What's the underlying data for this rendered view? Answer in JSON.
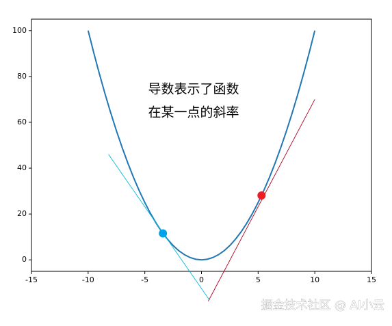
{
  "chart_data": {
    "type": "line",
    "xlim": [
      -15,
      15
    ],
    "ylim": [
      -5,
      105
    ],
    "xticks": [
      -15,
      -10,
      -5,
      0,
      5,
      10,
      15
    ],
    "yticks": [
      0,
      20,
      40,
      60,
      80,
      100
    ],
    "series": [
      {
        "color": "#1f77b4",
        "x": [
          -10,
          -9.5,
          -9,
          -8.5,
          -8,
          -7.5,
          -7,
          -6.5,
          -6,
          -5.5,
          -5,
          -4.5,
          -4,
          -3.5,
          -3,
          -2.5,
          -2,
          -1.5,
          -1,
          -0.5,
          0,
          0.5,
          1,
          1.5,
          2,
          2.5,
          3,
          3.5,
          4,
          4.5,
          5,
          5.5,
          6,
          6.5,
          7,
          7.5,
          8,
          8.5,
          9,
          9.5,
          10
        ],
        "values": [
          100,
          90.25,
          81,
          72.25,
          64,
          56.25,
          49,
          42.25,
          36,
          30.25,
          25,
          20.25,
          16,
          12.25,
          9,
          6.25,
          4,
          2.25,
          1,
          0.25,
          0,
          0.25,
          1,
          2.25,
          4,
          6.25,
          9,
          12.25,
          16,
          20.25,
          25,
          30.25,
          36,
          42.25,
          49,
          56.25,
          64,
          72.25,
          81,
          90.25,
          100
        ]
      },
      {
        "color": "#00bcd8",
        "x": [
          -8.2,
          0.7
        ],
        "values": [
          46,
          -17.5
        ]
      },
      {
        "color": "#b00020",
        "x": [
          0.6,
          10
        ],
        "values": [
          -18,
          70
        ]
      },
      {
        "color": "#00a2e8",
        "marker": true,
        "x": [
          -3.4
        ],
        "values": [
          11.56
        ]
      },
      {
        "color": "#ee1c25",
        "marker": true,
        "x": [
          5.3
        ],
        "values": [
          28.09
        ]
      }
    ],
    "annotations": [
      "导数表示了函数",
      "在某一点的斜率"
    ],
    "watermark": "掘金技术社区 @ AI小云"
  }
}
